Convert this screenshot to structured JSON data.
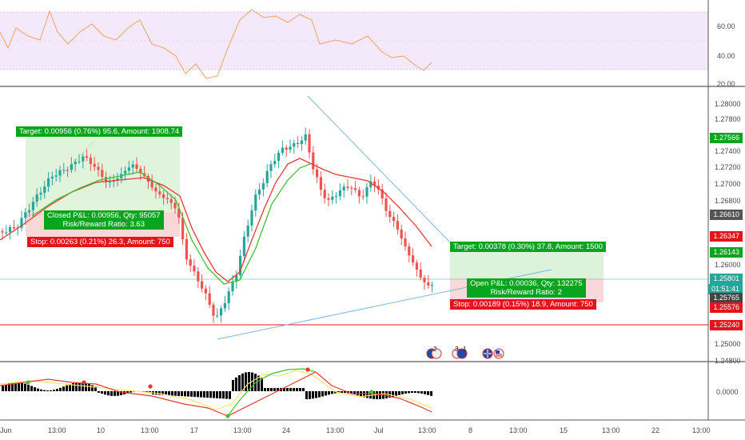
{
  "colors": {
    "up": "#26a69a",
    "down": "#ef5350",
    "target_box": "#0aa51f",
    "stop_box": "#e5131c",
    "sma_red": "#e53935",
    "sma_green": "#43c12e",
    "rsi_line": "#f4a06b",
    "rsi_band": "#f3e9fb",
    "trendline": "#7fb7d6",
    "macd_signal": "#f8e56f"
  },
  "rsi_axis": [
    "60.00",
    "40.00",
    "20.00"
  ],
  "price_axis": [
    "1.28000",
    "1.27800",
    "1.27400",
    "1.27200",
    "1.27000",
    "1.26800",
    "1.26000",
    "1.25000",
    "1.24800"
  ],
  "macd_axis": [
    "0.0000"
  ],
  "time_axis": [
    "Jun",
    "13:00",
    "10",
    "13:00",
    "17",
    "13:00",
    "24",
    "13:00",
    "Jul",
    "13:00",
    "8",
    "13:00",
    "15",
    "13:00",
    "22",
    "13:00"
  ],
  "price_tags": {
    "target_1": "1.27566",
    "last": "1.26610",
    "stop_1": "1.26347",
    "target_2": "1.26143",
    "current": "1.25801",
    "countdown": "01:51:41",
    "entry_2": "1.25765",
    "stop_2": "1.25576",
    "support": "1.25240"
  },
  "position_1": {
    "target_label": "Target: 0.00956 (0.76%) 95.6, Amount: 1908.74",
    "closed_pl": "Closed P&L: 0.00956, Qty: 95057",
    "risk_reward": "Risk/Reward Ratio: 3.63",
    "stop_label": "Stop: 0.00263 (0.21%) 26.3, Amount: 750"
  },
  "position_2": {
    "target_label": "Target: 0.00378 (0.30%) 37.8, Amount: 1500",
    "open_pl": "Open P&L: 0.00036, Qty: 132275",
    "risk_reward": "Risk/Reward Ratio: 2",
    "stop_label": "Stop: 0.00189 (0.15%) 18.9, Amount: 750"
  },
  "events": [
    {
      "count": "2"
    },
    {
      "count": "3"
    },
    {
      "count": "1"
    }
  ]
}
